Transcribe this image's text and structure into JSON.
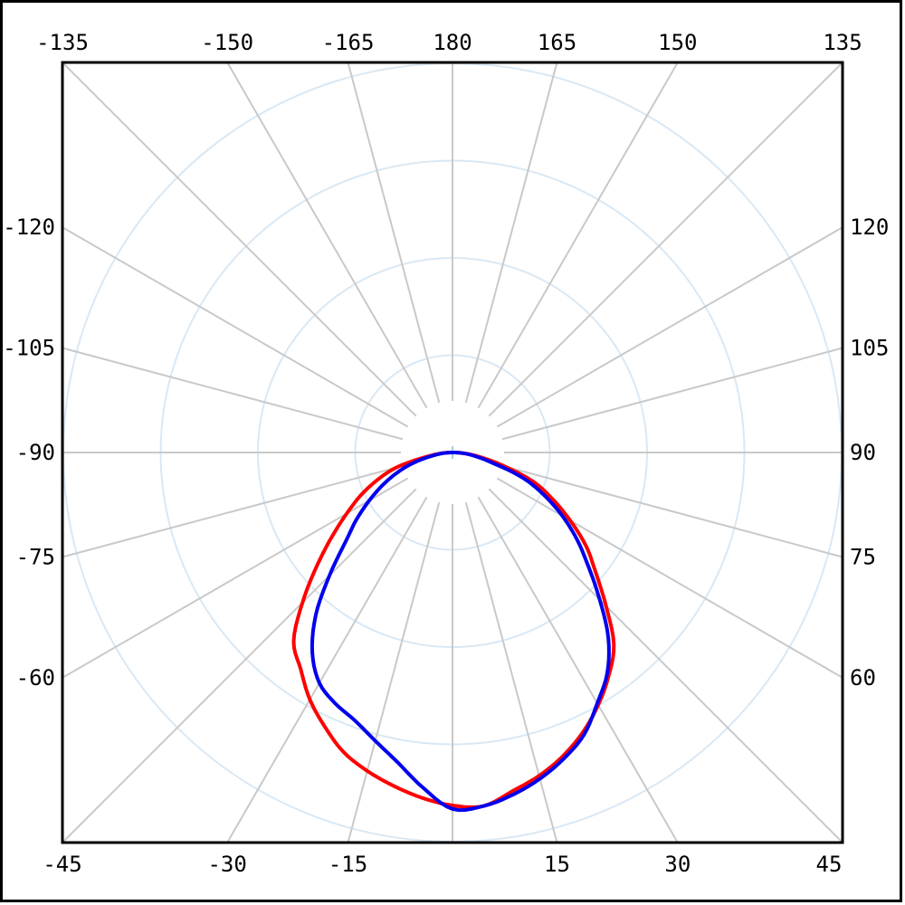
{
  "chart_data": {
    "type": "polar-line",
    "title": "",
    "description": "Polar luminous-intensity distribution curve on a square frame; angle labels every 15 degrees around the border, 0 degrees pointing down, 180 at top",
    "angle_unit": "degrees",
    "angle_step_deg": 15,
    "radial_axis": {
      "ring_fractions": [
        0.25,
        0.5,
        0.75,
        1.0
      ],
      "ring_value_labels_visible": false,
      "inner_gap_fraction": 0.1326
    },
    "grid": {
      "radial_lines_full_circle": true,
      "rings_full_circle": true,
      "center_marker": true
    },
    "frame_labels": [
      {
        "side": "top",
        "angle": -135,
        "text": "-135"
      },
      {
        "side": "top",
        "angle": -150,
        "text": "-150"
      },
      {
        "side": "top",
        "angle": -165,
        "text": "-165"
      },
      {
        "side": "top",
        "angle": 180,
        "text": "180"
      },
      {
        "side": "top",
        "angle": 165,
        "text": "165"
      },
      {
        "side": "top",
        "angle": 150,
        "text": "150"
      },
      {
        "side": "top",
        "angle": 135,
        "text": "135"
      },
      {
        "side": "right",
        "angle": 120,
        "text": "120"
      },
      {
        "side": "right",
        "angle": 105,
        "text": "105"
      },
      {
        "side": "right",
        "angle": 90,
        "text": "90"
      },
      {
        "side": "right",
        "angle": 75,
        "text": "75"
      },
      {
        "side": "right",
        "angle": 60,
        "text": "60"
      },
      {
        "side": "bottom",
        "angle": 45,
        "text": "45"
      },
      {
        "side": "bottom",
        "angle": 30,
        "text": "30"
      },
      {
        "side": "bottom",
        "angle": 15,
        "text": "15"
      },
      {
        "side": "bottom",
        "angle": -15,
        "text": "-15"
      },
      {
        "side": "bottom",
        "angle": -30,
        "text": "-30"
      },
      {
        "side": "bottom",
        "angle": -45,
        "text": "-45"
      },
      {
        "side": "left",
        "angle": -60,
        "text": "-60"
      },
      {
        "side": "left",
        "angle": -75,
        "text": "-75"
      },
      {
        "side": "left",
        "angle": -90,
        "text": "-90"
      },
      {
        "side": "left",
        "angle": -105,
        "text": "-105"
      },
      {
        "side": "left",
        "angle": -120,
        "text": "-120"
      }
    ],
    "series": [
      {
        "name": "curve-red",
        "color": "#ff0000",
        "points": [
          [
            -90,
            0.005
          ],
          [
            -85,
            0.035
          ],
          [
            -80,
            0.075
          ],
          [
            -75,
            0.15
          ],
          [
            -70,
            0.205
          ],
          [
            -65,
            0.26
          ],
          [
            -60,
            0.314
          ],
          [
            -55,
            0.379
          ],
          [
            -50,
            0.456
          ],
          [
            -45,
            0.545
          ],
          [
            -40,
            0.635
          ],
          [
            -35,
            0.68
          ],
          [
            -30,
            0.733
          ],
          [
            -25,
            0.777
          ],
          [
            -20,
            0.819
          ],
          [
            -15,
            0.847
          ],
          [
            -10,
            0.87
          ],
          [
            -5,
            0.891
          ],
          [
            0,
            0.907
          ],
          [
            5,
            0.912
          ],
          [
            10,
            0.884
          ],
          [
            15,
            0.86
          ],
          [
            20,
            0.83
          ],
          [
            25,
            0.793
          ],
          [
            30,
            0.749
          ],
          [
            35,
            0.7
          ],
          [
            40,
            0.645
          ],
          [
            45,
            0.558
          ],
          [
            50,
            0.481
          ],
          [
            55,
            0.419
          ],
          [
            60,
            0.349
          ],
          [
            65,
            0.284
          ],
          [
            70,
            0.223
          ],
          [
            75,
            0.14
          ],
          [
            80,
            0.079
          ],
          [
            85,
            0.037
          ],
          [
            90,
            0.007
          ]
        ]
      },
      {
        "name": "curve-blue",
        "color": "#0000ee",
        "points": [
          [
            -90,
            0.005
          ],
          [
            -85,
            0.028
          ],
          [
            -80,
            0.058
          ],
          [
            -75,
            0.105
          ],
          [
            -70,
            0.151
          ],
          [
            -65,
            0.198
          ],
          [
            -60,
            0.247
          ],
          [
            -55,
            0.302
          ],
          [
            -50,
            0.36
          ],
          [
            -45,
            0.447
          ],
          [
            -40,
            0.547
          ],
          [
            -35,
            0.628
          ],
          [
            -30,
            0.684
          ],
          [
            -25,
            0.712
          ],
          [
            -20,
            0.733
          ],
          [
            -15,
            0.767
          ],
          [
            -10,
            0.809
          ],
          [
            -5,
            0.865
          ],
          [
            0,
            0.916
          ],
          [
            5,
            0.912
          ],
          [
            10,
            0.893
          ],
          [
            15,
            0.868
          ],
          [
            20,
            0.837
          ],
          [
            25,
            0.8
          ],
          [
            30,
            0.744
          ],
          [
            35,
            0.693
          ],
          [
            40,
            0.623
          ],
          [
            45,
            0.535
          ],
          [
            50,
            0.456
          ],
          [
            55,
            0.391
          ],
          [
            60,
            0.326
          ],
          [
            65,
            0.26
          ],
          [
            70,
            0.195
          ],
          [
            75,
            0.112
          ],
          [
            80,
            0.065
          ],
          [
            85,
            0.033
          ],
          [
            90,
            0.007
          ]
        ]
      }
    ],
    "colors": {
      "red_curve": "#ff0000",
      "blue_curve": "#0000ee",
      "radial_grid": "#c9c9c9",
      "ring_grid": "#d9e8f4",
      "center_marker": "#a9cbe0",
      "frame": "#000000",
      "label_text": "#000000",
      "background": "#ffffff"
    },
    "legend": {
      "visible": false
    }
  }
}
